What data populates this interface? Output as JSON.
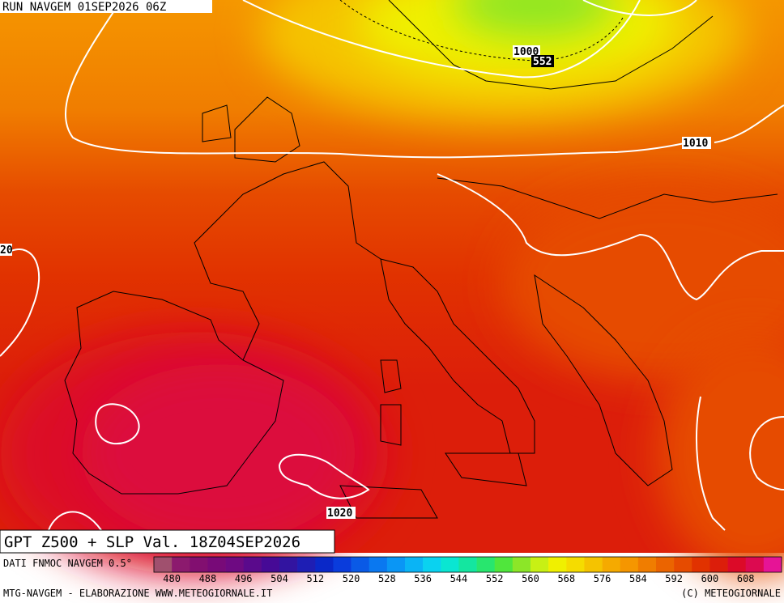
{
  "header": "RUN NAVGEM 01SEP2026 06Z",
  "contour_labels": [
    "1000",
    "552",
    "1010",
    "20",
    "1020"
  ],
  "title": "GPT Z500 + SLP Val. 18Z04SEP2026",
  "colorbar": {
    "caption": "DATI FNMOC NAVGEM 0.5°",
    "labels": [
      480,
      488,
      496,
      504,
      512,
      520,
      528,
      536,
      544,
      552,
      560,
      568,
      576,
      584,
      592,
      600,
      608
    ],
    "colors": [
      "#a0506e",
      "#8c1a6e",
      "#820f70",
      "#780a78",
      "#6e0a82",
      "#5a0a8c",
      "#460a96",
      "#3214a0",
      "#1e1eb4",
      "#0a28c8",
      "#0a3cdc",
      "#0a5ae6",
      "#0a78f0",
      "#0a96f5",
      "#0ab4f5",
      "#0ad2f0",
      "#0ae6d2",
      "#14e6a0",
      "#28e66e",
      "#50e63c",
      "#8ce628",
      "#c8f014",
      "#f0f000",
      "#f5dc00",
      "#f5c300",
      "#f5aa00",
      "#f59600",
      "#f07d00",
      "#eb6400",
      "#e64b00",
      "#e13200",
      "#dc1e0a",
      "#dc0a28",
      "#dc0a50",
      "#e61496"
    ]
  },
  "footer": {
    "left": "MTG-NAVGEM - ELABORAZIONE WWW.METEOGIORNALE.IT",
    "right": "(C) METEOGIORNALE"
  }
}
